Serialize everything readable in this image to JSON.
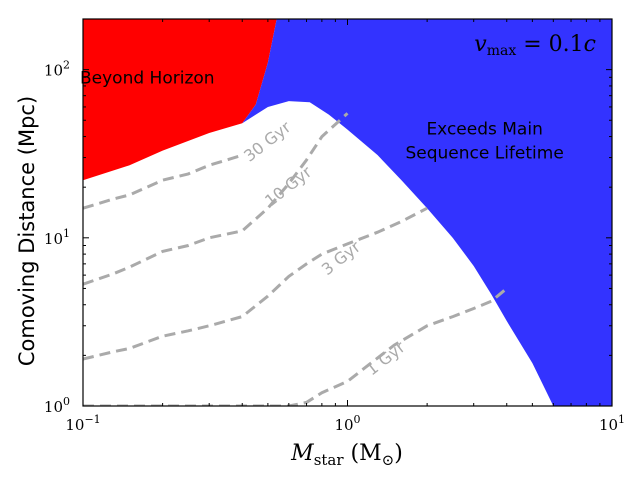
{
  "chart_data": {
    "type": "area",
    "xlabel_main": "M",
    "xlabel_sub": "star",
    "xlabel_unit_open": " (M",
    "xlabel_unit_sub": "⊙",
    "xlabel_unit_close": ")",
    "ylabel": "Comoving Distance (Mpc)",
    "xscale": "log",
    "yscale": "log",
    "xlim": [
      0.1,
      10
    ],
    "ylim": [
      1,
      200
    ],
    "x_ticks": [
      {
        "value": 0.1,
        "base": "10",
        "exp": "−1"
      },
      {
        "value": 1,
        "base": "10",
        "exp": "0"
      },
      {
        "value": 10,
        "base": "10",
        "exp": "1"
      }
    ],
    "y_ticks": [
      {
        "value": 1,
        "base": "10",
        "exp": "0"
      },
      {
        "value": 10,
        "base": "10",
        "exp": "1"
      },
      {
        "value": 100,
        "base": "10",
        "exp": "2"
      }
    ],
    "grid": false,
    "annotation": {
      "lhs_main": "v",
      "lhs_sub": "max",
      "rhs": " = 0.1",
      "rhs_var": "c"
    },
    "regions": [
      {
        "name": "Beyond Horizon",
        "label_lines": [
          "Beyond Horizon"
        ],
        "color": "#ff0000",
        "label_at": {
          "x": 0.175,
          "y": 90
        },
        "label_color": "#000000",
        "boundary": [
          {
            "x": 0.1,
            "y": 22
          },
          {
            "x": 0.15,
            "y": 27
          },
          {
            "x": 0.2,
            "y": 33
          },
          {
            "x": 0.3,
            "y": 42
          },
          {
            "x": 0.4,
            "y": 48
          },
          {
            "x": 0.45,
            "y": 62
          },
          {
            "x": 0.5,
            "y": 110
          },
          {
            "x": 0.54,
            "y": 200
          }
        ]
      },
      {
        "name": "Exceeds Main Sequence Lifetime",
        "label_lines": [
          "Exceeds Main",
          "Sequence Lifetime"
        ],
        "color": "#3333ff",
        "label_at": {
          "x": 3.3,
          "y": 38
        },
        "label_color": "#000000",
        "boundary": [
          {
            "x": 0.4,
            "y": 48
          },
          {
            "x": 0.5,
            "y": 60
          },
          {
            "x": 0.6,
            "y": 65
          },
          {
            "x": 0.72,
            "y": 64
          },
          {
            "x": 0.85,
            "y": 54
          },
          {
            "x": 1.0,
            "y": 44
          },
          {
            "x": 1.3,
            "y": 31
          },
          {
            "x": 1.6,
            "y": 22
          },
          {
            "x": 2.0,
            "y": 15
          },
          {
            "x": 2.5,
            "y": 10
          },
          {
            "x": 3.0,
            "y": 6.8
          },
          {
            "x": 3.5,
            "y": 4.6
          },
          {
            "x": 4.0,
            "y": 3.2
          },
          {
            "x": 5.0,
            "y": 1.8
          },
          {
            "x": 6.0,
            "y": 1.0
          }
        ]
      }
    ],
    "series": [
      {
        "name": "30 Gyr",
        "label_at": {
          "x": 0.5,
          "y": 37
        },
        "label_angle": -38,
        "x": [
          0.1,
          0.13,
          0.15,
          0.2,
          0.25,
          0.3,
          0.4
        ],
        "y": [
          15,
          17,
          18,
          22,
          24,
          27,
          31
        ]
      },
      {
        "name": "10 Gyr",
        "label_at": {
          "x": 0.6,
          "y": 20
        },
        "label_angle": -38,
        "x": [
          0.1,
          0.13,
          0.15,
          0.2,
          0.25,
          0.3,
          0.4,
          0.5,
          0.6,
          0.7,
          0.8,
          1.0
        ],
        "y": [
          5.3,
          6.1,
          6.7,
          8.3,
          9.0,
          10,
          11,
          15,
          21,
          29,
          40,
          55
        ]
      },
      {
        "name": "3 Gyr",
        "label_at": {
          "x": 0.95,
          "y": 7.5
        },
        "label_angle": -38,
        "x": [
          0.1,
          0.13,
          0.15,
          0.2,
          0.25,
          0.3,
          0.4,
          0.5,
          0.6,
          0.7,
          0.8,
          1.0,
          1.3,
          1.6,
          2.0
        ],
        "y": [
          1.9,
          2.1,
          2.2,
          2.6,
          2.8,
          3.0,
          3.4,
          4.5,
          5.9,
          7.0,
          8.0,
          9.2,
          10.8,
          12.5,
          15
        ]
      },
      {
        "name": "1 Gyr",
        "label_at": {
          "x": 1.4,
          "y": 1.9
        },
        "label_angle": -38,
        "x": [
          0.1,
          0.13,
          0.15,
          0.2,
          0.25,
          0.3,
          0.4,
          0.5,
          0.6,
          0.7,
          0.8,
          1.0,
          1.2,
          1.5,
          2.0,
          2.5,
          3.0,
          3.5,
          4.0
        ],
        "y": [
          1.0,
          1.0,
          1.0,
          1.0,
          1.0,
          1.0,
          1.0,
          1.0,
          1.0,
          1.05,
          1.2,
          1.4,
          1.75,
          2.3,
          3.0,
          3.4,
          3.8,
          4.2,
          5.0
        ]
      }
    ],
    "series_style": {
      "color": "#aaaaaa",
      "dash": "dashed"
    }
  }
}
